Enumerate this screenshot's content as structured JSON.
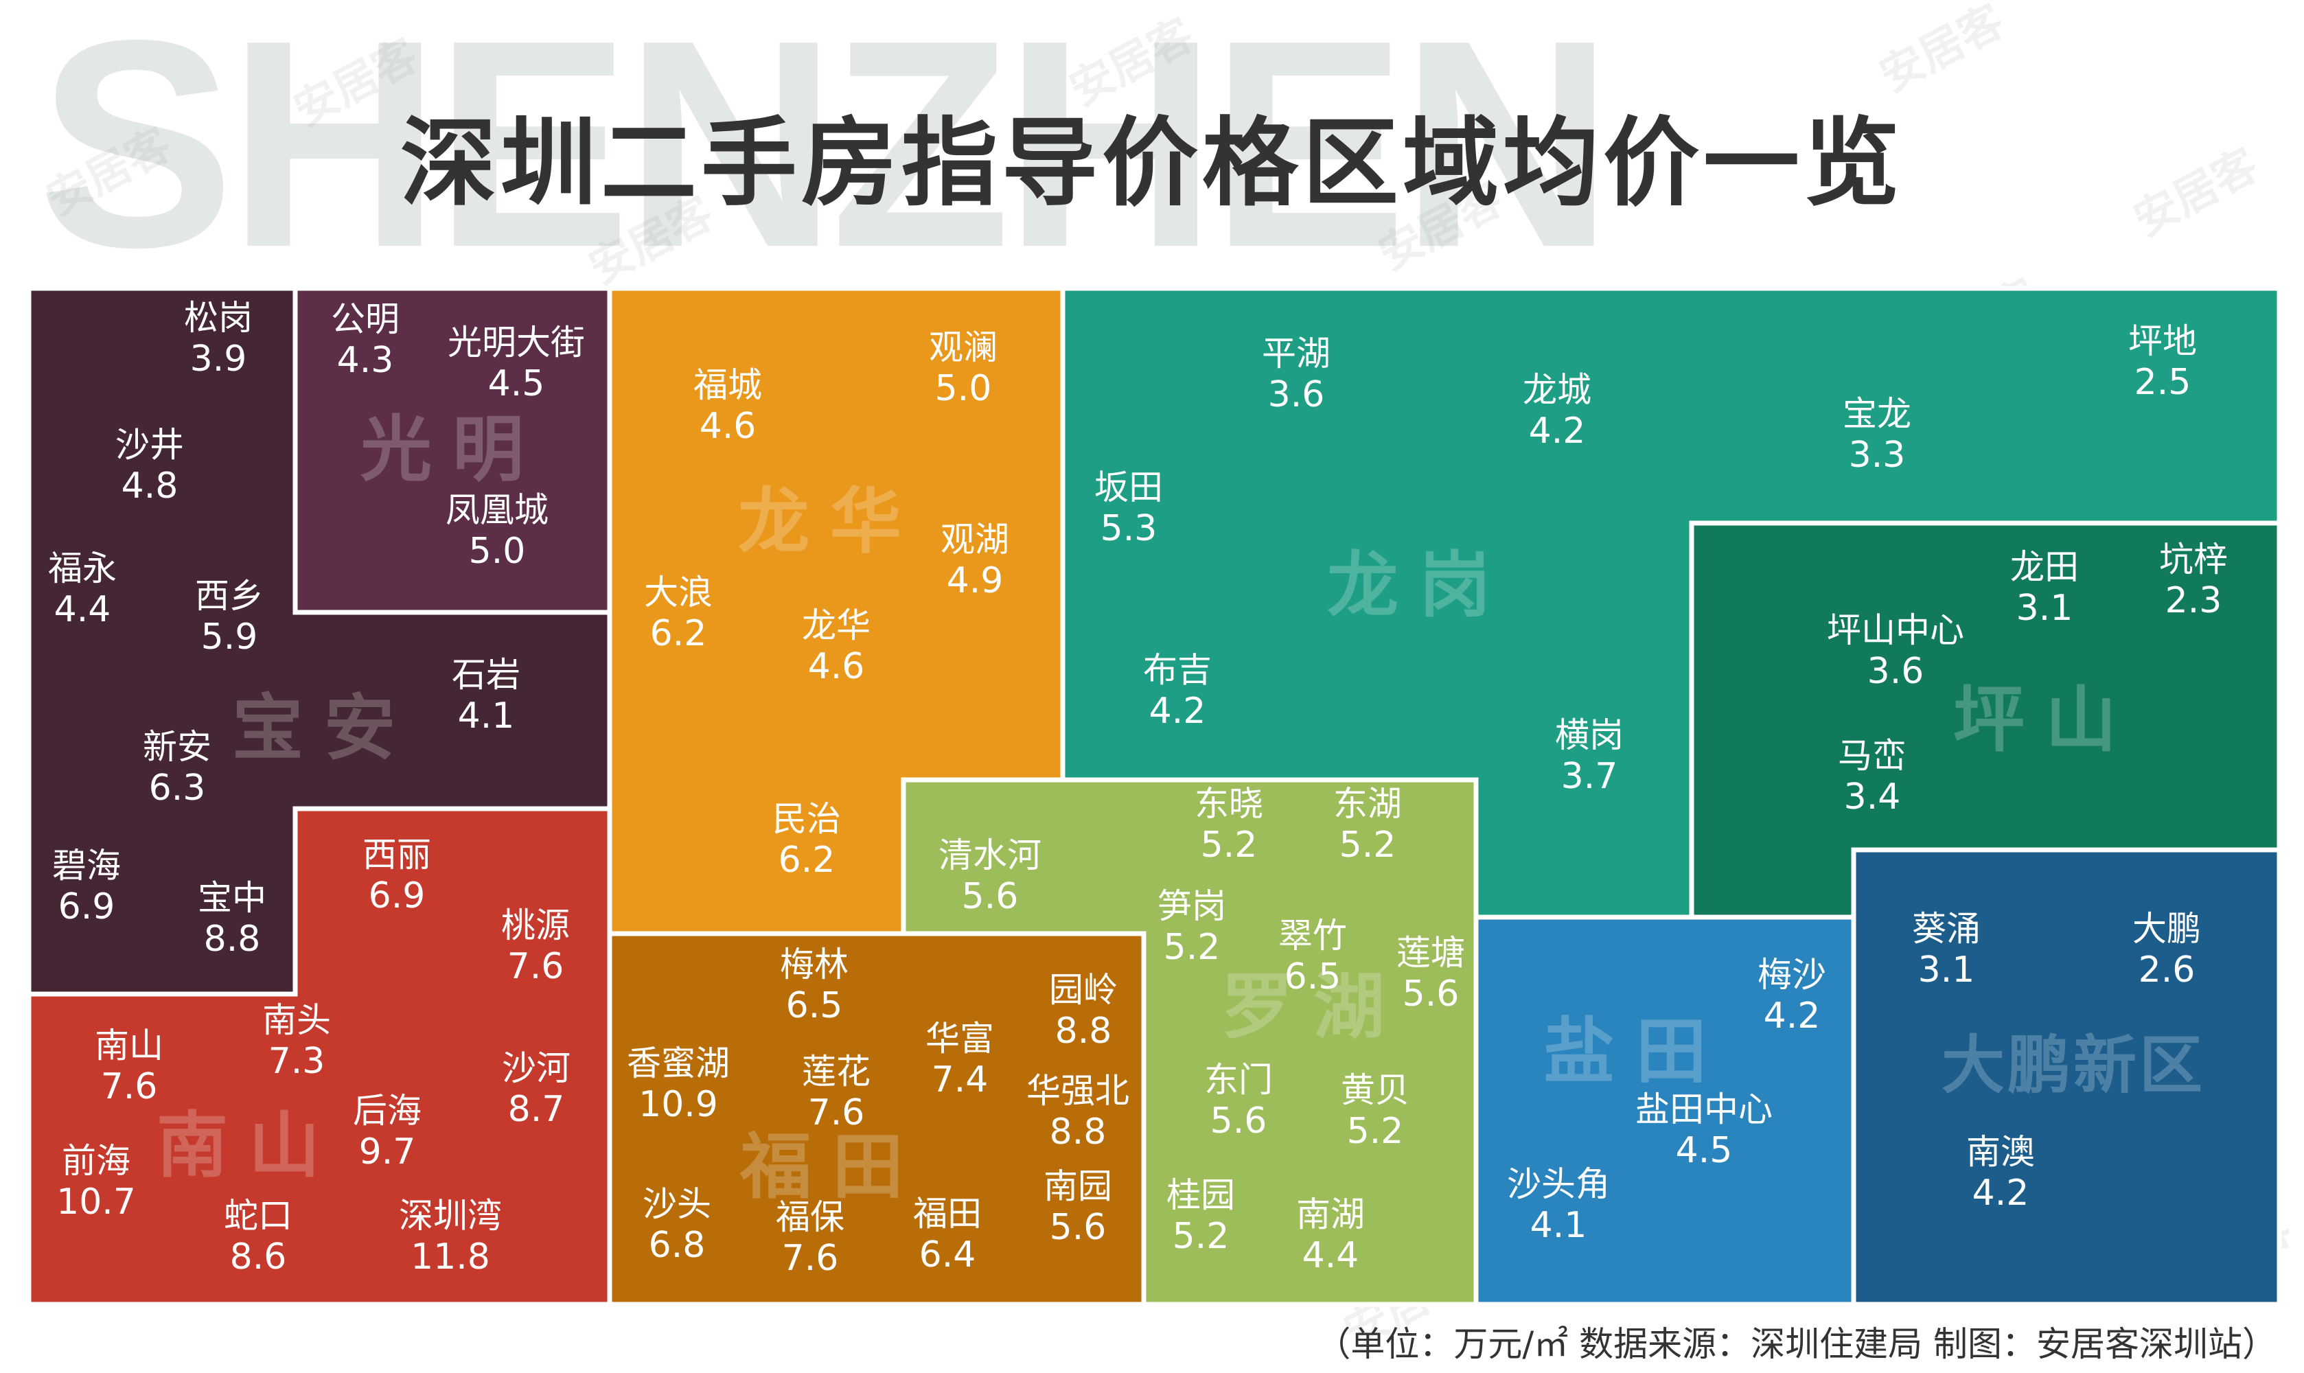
{
  "header": {
    "watermark_text": "SHENZHEN",
    "title": "深圳二手房指导价格区域均价一览",
    "logo_watermark": "安居客"
  },
  "footer": {
    "note": "（单位：万元/㎡ 数据来源：深圳住建局 制图：安居客深圳站）"
  },
  "colors": {
    "宝安": "#452634",
    "光明": "#5c2e48",
    "南山": "#c53a2c",
    "龙华": "#ea981c",
    "福田": "#b86d09",
    "罗湖": "#9cbd5a",
    "龙岗": "#1d9e85",
    "坪山": "#127a5c",
    "盐田": "#2a84bd",
    "大鹏新区": "#1c5d8c"
  },
  "chart_data": {
    "type": "treemap",
    "unit": "万元/㎡",
    "districts": [
      {
        "name": "宝安",
        "areas": [
          {
            "name": "松岗",
            "value": 3.9
          },
          {
            "name": "沙井",
            "value": 4.8
          },
          {
            "name": "福永",
            "value": 4.4
          },
          {
            "name": "西乡",
            "value": 5.9
          },
          {
            "name": "石岩",
            "value": 4.1
          },
          {
            "name": "新安",
            "value": 6.3
          },
          {
            "name": "碧海",
            "value": 6.9
          },
          {
            "name": "宝中",
            "value": 8.8
          }
        ]
      },
      {
        "name": "光明",
        "areas": [
          {
            "name": "公明",
            "value": 4.3
          },
          {
            "name": "光明大街",
            "value": 4.5
          },
          {
            "name": "凤凰城",
            "value": 5.0
          }
        ]
      },
      {
        "name": "南山",
        "areas": [
          {
            "name": "西丽",
            "value": 6.9
          },
          {
            "name": "桃源",
            "value": 7.6
          },
          {
            "name": "南头",
            "value": 7.3
          },
          {
            "name": "南山",
            "value": 7.6
          },
          {
            "name": "沙河",
            "value": 8.7
          },
          {
            "name": "后海",
            "value": 9.7
          },
          {
            "name": "前海",
            "value": 10.7
          },
          {
            "name": "蛇口",
            "value": 8.6
          },
          {
            "name": "深圳湾",
            "value": 11.8
          }
        ]
      },
      {
        "name": "龙华",
        "areas": [
          {
            "name": "福城",
            "value": 4.6
          },
          {
            "name": "观澜",
            "value": 5.0
          },
          {
            "name": "观湖",
            "value": 4.9
          },
          {
            "name": "大浪",
            "value": 6.2
          },
          {
            "name": "龙华",
            "value": 4.6
          },
          {
            "name": "民治",
            "value": 6.2
          }
        ]
      },
      {
        "name": "福田",
        "areas": [
          {
            "name": "梅林",
            "value": 6.5
          },
          {
            "name": "园岭",
            "value": 8.8
          },
          {
            "name": "华富",
            "value": 7.4
          },
          {
            "name": "香蜜湖",
            "value": 10.9
          },
          {
            "name": "莲花",
            "value": 7.6
          },
          {
            "name": "华强北",
            "value": 8.8
          },
          {
            "name": "沙头",
            "value": 6.8
          },
          {
            "name": "福保",
            "value": 7.6
          },
          {
            "name": "福田",
            "value": 6.4
          },
          {
            "name": "南园",
            "value": 5.6
          }
        ]
      },
      {
        "name": "罗湖",
        "areas": [
          {
            "name": "东晓",
            "value": 5.2
          },
          {
            "name": "东湖",
            "value": 5.2
          },
          {
            "name": "清水河",
            "value": 5.6
          },
          {
            "name": "笋岗",
            "value": 5.2
          },
          {
            "name": "翠竹",
            "value": 6.5
          },
          {
            "name": "莲塘",
            "value": 5.6
          },
          {
            "name": "东门",
            "value": 5.6
          },
          {
            "name": "黄贝",
            "value": 5.2
          },
          {
            "name": "桂园",
            "value": 5.2
          },
          {
            "name": "南湖",
            "value": 4.4
          }
        ]
      },
      {
        "name": "龙岗",
        "areas": [
          {
            "name": "平湖",
            "value": 3.6
          },
          {
            "name": "龙城",
            "value": 4.2
          },
          {
            "name": "宝龙",
            "value": 3.3
          },
          {
            "name": "坪地",
            "value": 2.5
          },
          {
            "name": "坂田",
            "value": 5.3
          },
          {
            "name": "布吉",
            "value": 4.2
          },
          {
            "name": "横岗",
            "value": 3.7
          }
        ]
      },
      {
        "name": "坪山",
        "areas": [
          {
            "name": "龙田",
            "value": 3.1
          },
          {
            "name": "坑梓",
            "value": 2.3
          },
          {
            "name": "坪山中心",
            "value": 3.6
          },
          {
            "name": "马峦",
            "value": 3.4
          }
        ]
      },
      {
        "name": "盐田",
        "areas": [
          {
            "name": "梅沙",
            "value": 4.2
          },
          {
            "name": "盐田中心",
            "value": 4.5
          },
          {
            "name": "沙头角",
            "value": 4.1
          }
        ]
      },
      {
        "name": "大鹏新区",
        "areas": [
          {
            "name": "葵涌",
            "value": 3.1
          },
          {
            "name": "大鹏",
            "value": 2.6
          },
          {
            "name": "南澳",
            "value": 4.2
          }
        ]
      }
    ]
  }
}
